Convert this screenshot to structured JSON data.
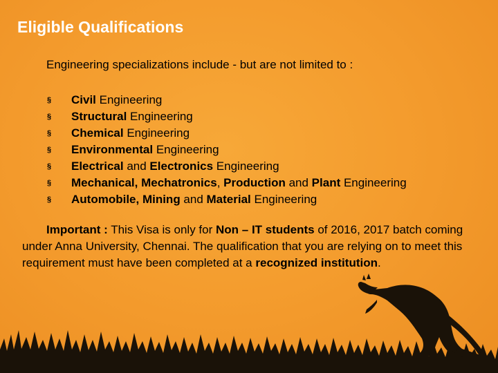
{
  "slide": {
    "title": "Eligible Qualifications",
    "intro": "Engineering specializations include - but are not limited to :",
    "bullet_symbol": "§",
    "bullets": [
      {
        "bold": "Civil",
        "rest": " Engineering"
      },
      {
        "bold": "Structural",
        "rest": " Engineering"
      },
      {
        "bold": "Chemical",
        "rest": " Engineering"
      },
      {
        "bold": "Environmental",
        "rest": " Engineering"
      },
      {
        "bold1": "Electrical",
        "mid1": " and ",
        "bold2": "Electronics",
        "rest": " Engineering"
      },
      {
        "bold1": "Mechanical, Mechatronics",
        "mid1": ", ",
        "bold2": "Production",
        "mid2": " and ",
        "bold3": "Plant",
        "rest": " Engineering"
      },
      {
        "bold1": "Automobile, Mining",
        "mid1": " and ",
        "bold2": "Material",
        "rest": " Engineering"
      }
    ],
    "note": {
      "label": "Important :",
      "t1": " This Visa is only for ",
      "b1": "Non – IT students",
      "t2": " of 2016, 2017 batch coming under Anna University, Chennai. The qualification that you are relying on to meet this requirement must have been completed at a ",
      "b2": "recognized institution",
      "t3": "."
    }
  },
  "colors": {
    "background": "#f39a2c",
    "title": "#ffffff",
    "text": "#000000",
    "silhouette": "#1a1208"
  },
  "icons": {
    "kangaroo": "kangaroo-silhouette-icon",
    "grass": "grass-silhouette-icon"
  }
}
